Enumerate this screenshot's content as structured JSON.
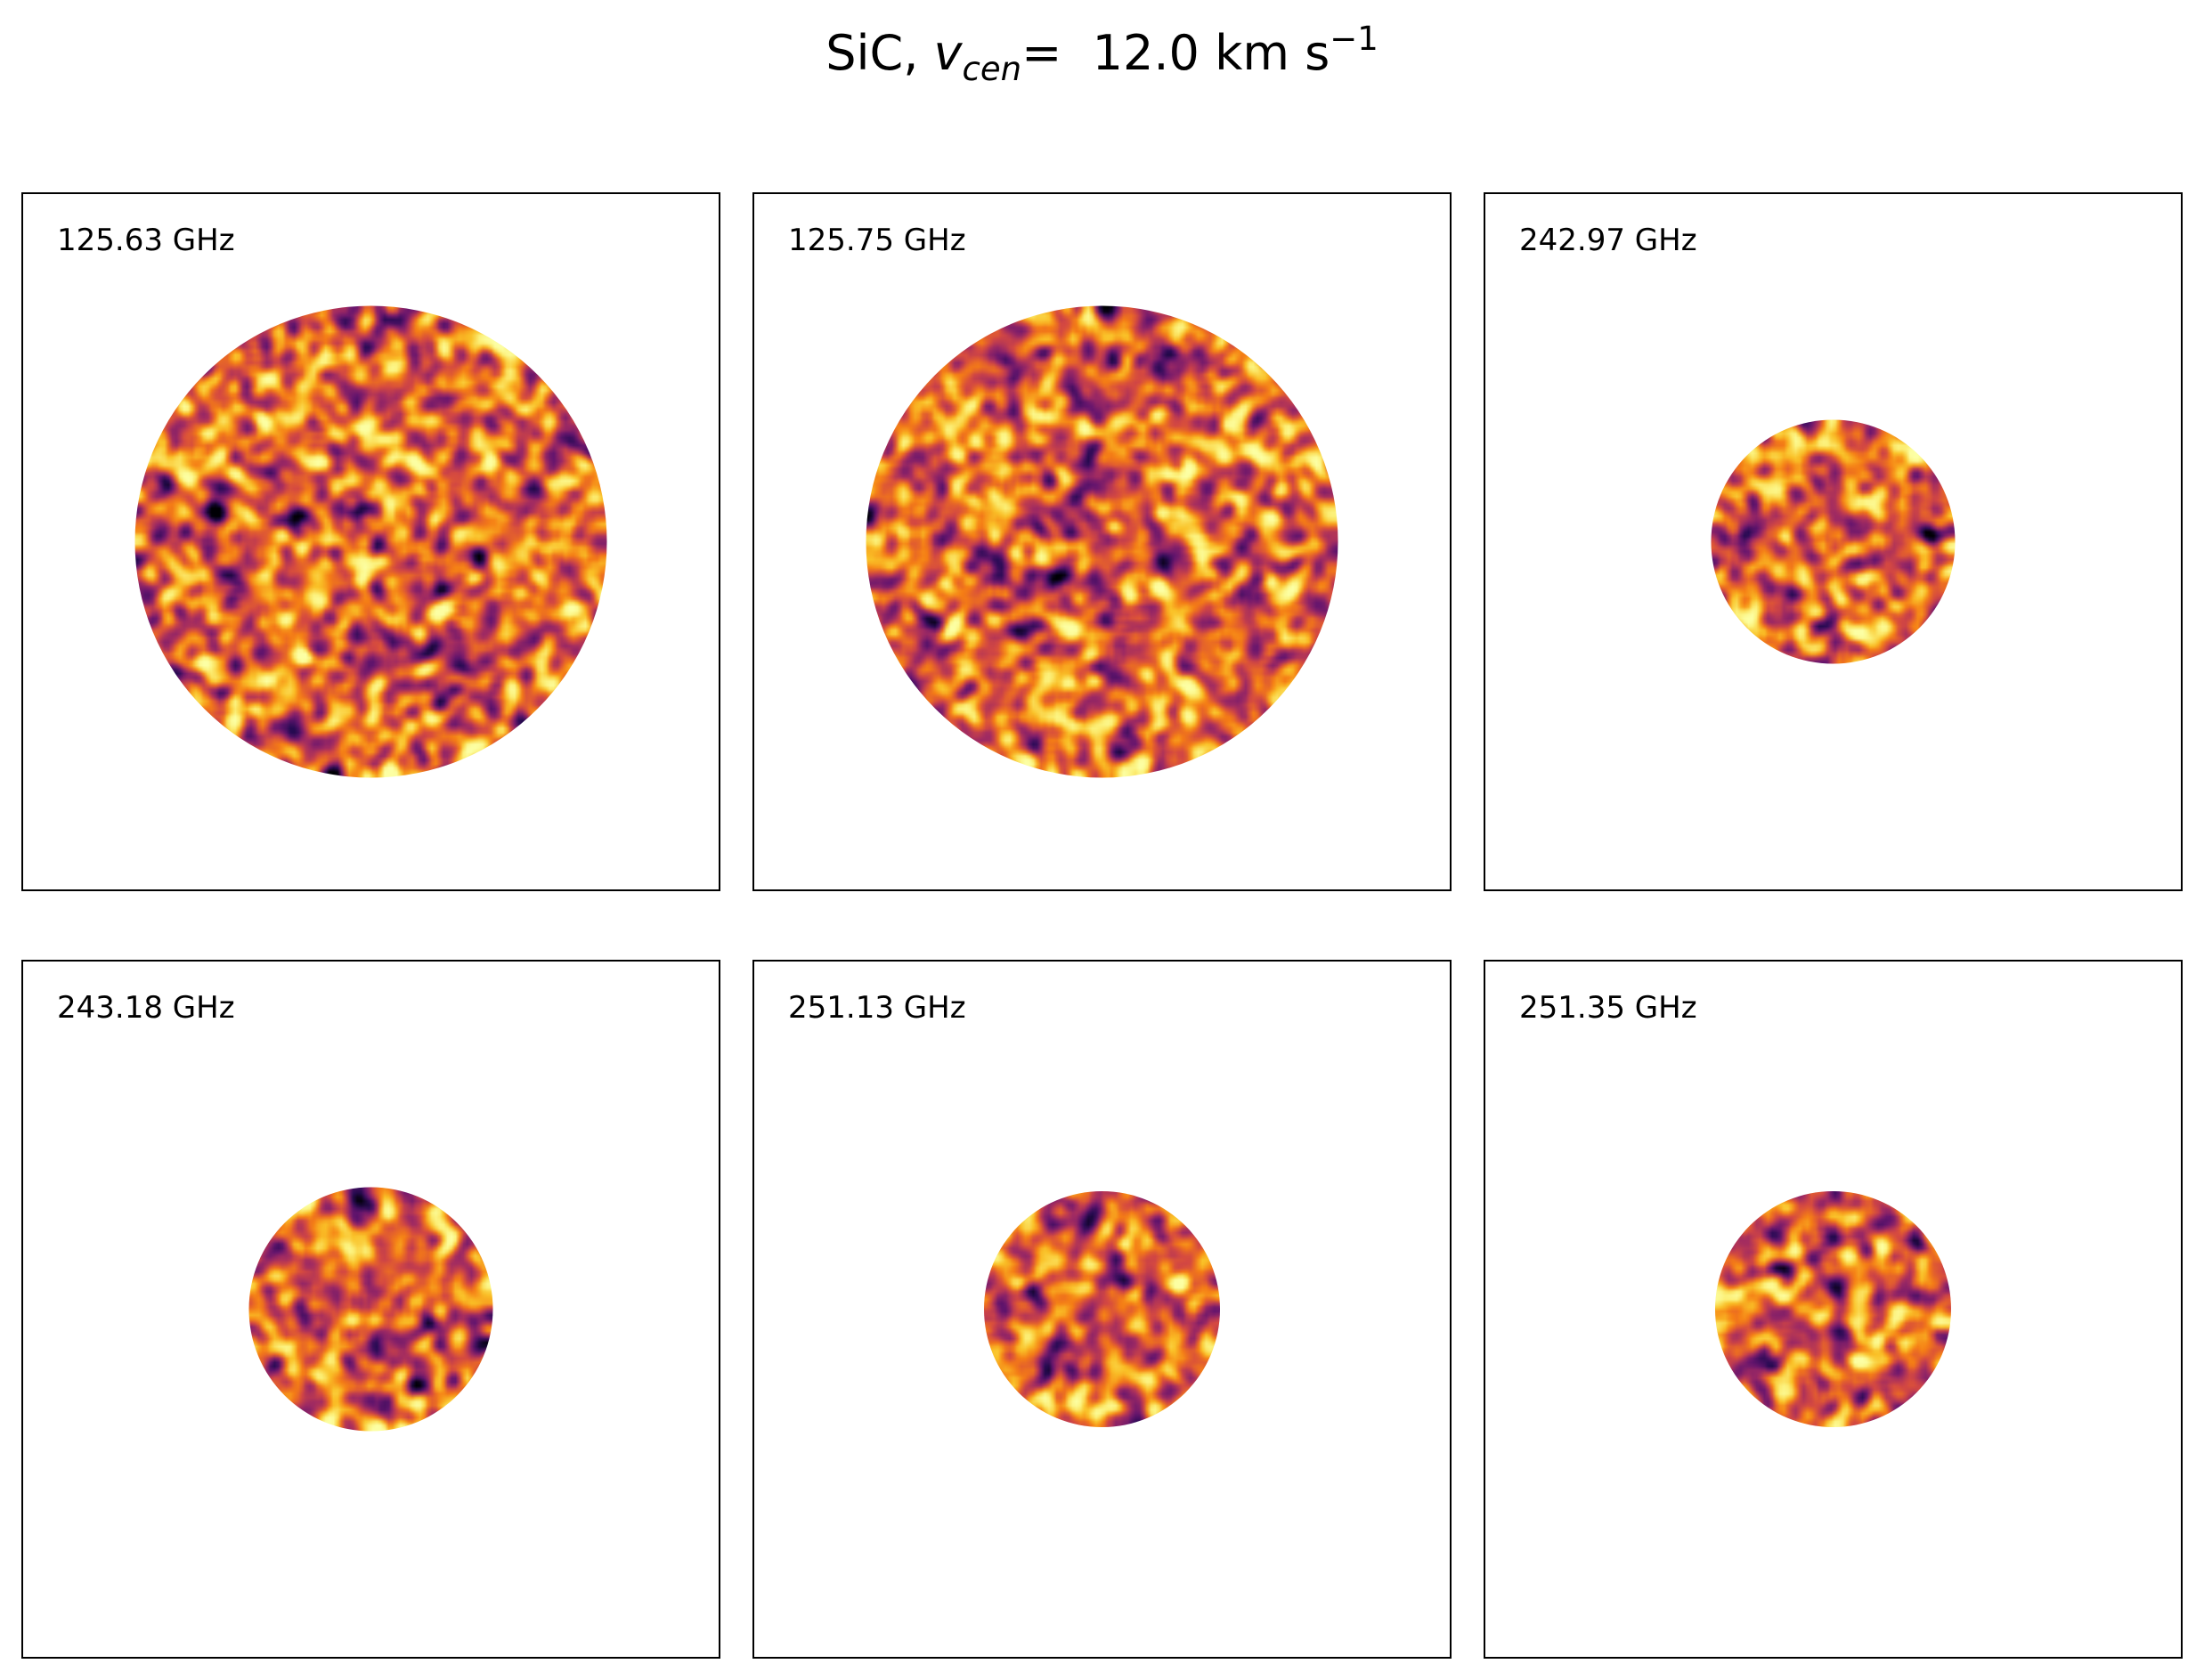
{
  "figure": {
    "title_prefix": "SiC,",
    "title_symbol": "v",
    "title_subscript": "cen",
    "title_equals": "=",
    "title_value": "12.0",
    "title_units": "km s",
    "title_exponent": "−1"
  },
  "chart_data": {
    "type": "heatmap",
    "colormap": "inferno",
    "grid": false,
    "panels": [
      {
        "label": "125.63 GHz",
        "relative_beam_radius": 1.0,
        "seed": 11
      },
      {
        "label": "125.75 GHz",
        "relative_beam_radius": 1.0,
        "seed": 23
      },
      {
        "label": "242.97 GHz",
        "relative_beam_radius": 0.517,
        "seed": 37
      },
      {
        "label": "243.18 GHz",
        "relative_beam_radius": 0.517,
        "seed": 41
      },
      {
        "label": "251.13 GHz",
        "relative_beam_radius": 0.5,
        "seed": 53
      },
      {
        "label": "251.35 GHz",
        "relative_beam_radius": 0.5,
        "seed": 67
      }
    ]
  }
}
